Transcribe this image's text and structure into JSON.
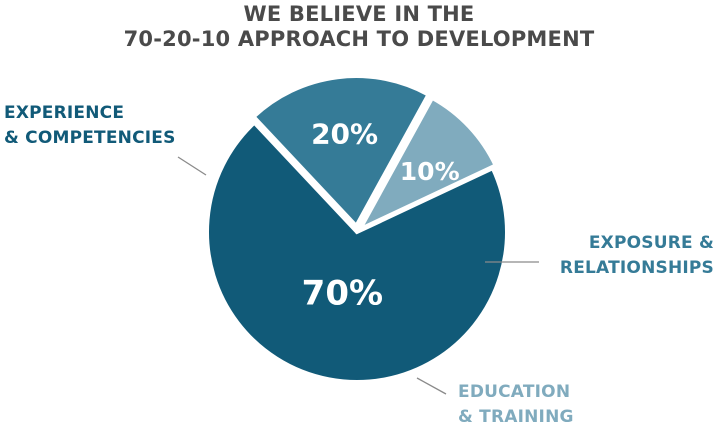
{
  "header": {
    "title_line1": "WE BELIEVE IN THE",
    "title_line2": "70-20-10 APPROACH TO DEVELOPMENT"
  },
  "chart_data": {
    "type": "pie",
    "categories": [
      "EXPERIENCE & COMPETENCIES",
      "EXPOSURE & RELATIONSHIPS",
      "EDUCATION & TRAINING"
    ],
    "values": [
      70,
      20,
      10
    ],
    "value_labels": [
      "70%",
      "20%",
      "10%"
    ],
    "colors": [
      "#115a78",
      "#357b97",
      "#80abbe"
    ],
    "legend": "callout labels beside each slice",
    "category_labels": [
      {
        "line1": "EXPERIENCE",
        "line2": "& COMPETENCIES"
      },
      {
        "line1": "EXPOSURE &",
        "line2": "RELATIONSHIPS"
      },
      {
        "line1": "EDUCATION",
        "line2": "& TRAINING"
      }
    ]
  }
}
